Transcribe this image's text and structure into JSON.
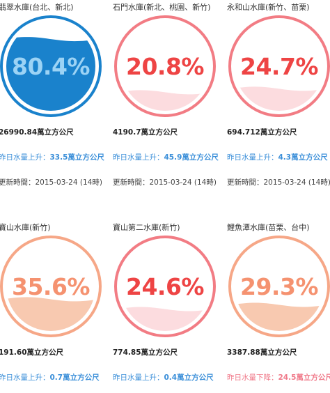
{
  "reservoirs": [
    {
      "name": "翡翠水庫(台北、新北)",
      "percent_text": "80.4%",
      "fill_fraction": 0.804,
      "ring_color": "#1a82cc",
      "fill_color": "#1a82cc",
      "text_color": "#9cd3f5",
      "volume": "26990.84萬立方公尺",
      "change_label": "昨日水量上升：",
      "change_value": "33.5萬立方公尺",
      "change_direction": "up",
      "updated": "更新時間：2015-03-24 (14時)"
    },
    {
      "name": "石門水庫(新北、桃園、新竹)",
      "percent_text": "20.8%",
      "fill_fraction": 0.208,
      "ring_color": "#f27c84",
      "fill_color": "#fcdcdf",
      "text_color": "#ee4444",
      "volume": "4190.7萬立方公尺",
      "change_label": "昨日水量上升：",
      "change_value": "45.9萬立方公尺",
      "change_direction": "up",
      "updated": "更新時間：2015-03-24 (14時)"
    },
    {
      "name": "永和山水庫(新竹、苗栗)",
      "percent_text": "24.7%",
      "fill_fraction": 0.247,
      "ring_color": "#f27c84",
      "fill_color": "#fcdcdf",
      "text_color": "#ee4444",
      "volume": "694.712萬立方公尺",
      "change_label": "昨日水量上升：",
      "change_value": "4.3萬立方公尺",
      "change_direction": "up",
      "updated": "更新時間：2015-03-24 (14時)"
    },
    {
      "name": "寶山水庫(新竹)",
      "percent_text": "35.6%",
      "fill_fraction": 0.356,
      "ring_color": "#f6a787",
      "fill_color": "#f8c9b0",
      "text_color": "#f59270",
      "volume": "191.60萬立方公尺",
      "change_label": "昨日水量上升：",
      "change_value": "0.7萬立方公尺",
      "change_direction": "up",
      "updated": ""
    },
    {
      "name": "寶山第二水庫(新竹)",
      "percent_text": "24.6%",
      "fill_fraction": 0.246,
      "ring_color": "#f27c84",
      "fill_color": "#fcdcdf",
      "text_color": "#ee4444",
      "volume": "774.85萬立方公尺",
      "change_label": "昨日水量上升：",
      "change_value": "0.4萬立方公尺",
      "change_direction": "up",
      "updated": ""
    },
    {
      "name": "鯉魚潭水庫(苗栗、台中)",
      "percent_text": "29.3%",
      "fill_fraction": 0.293,
      "ring_color": "#f6a787",
      "fill_color": "#f8c9b0",
      "text_color": "#f59270",
      "volume": "3387.88萬立方公尺",
      "change_label": "昨日水量下降：",
      "change_value": "24.5萬立方公尺",
      "change_direction": "down",
      "updated": ""
    }
  ]
}
